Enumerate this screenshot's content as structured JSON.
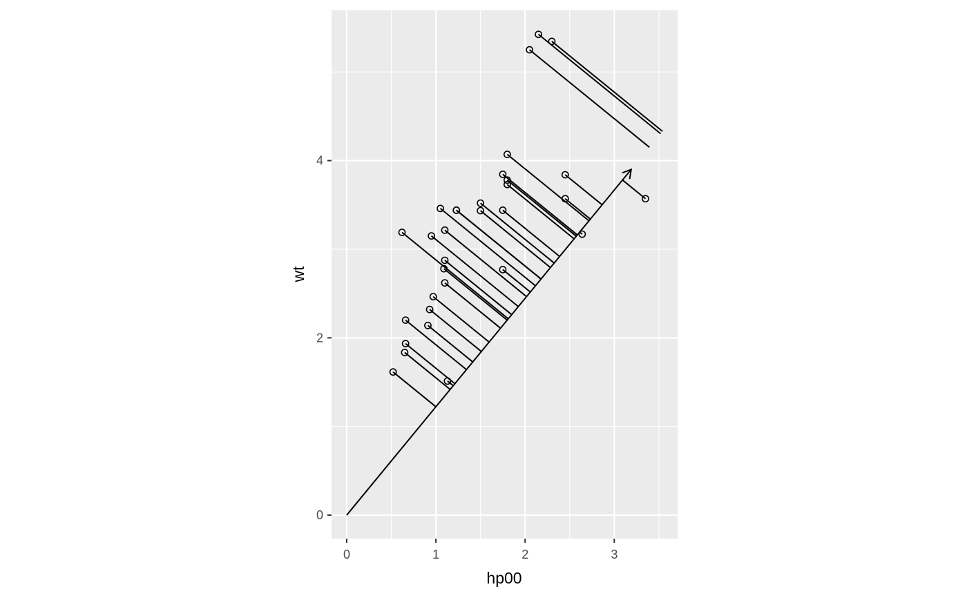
{
  "chart_data": {
    "type": "scatter",
    "title": "",
    "xlabel": "hp00",
    "ylabel": "wt",
    "xlim": [
      -0.17,
      3.71
    ],
    "ylim": [
      -0.265,
      5.695
    ],
    "x_ticks": [
      0,
      1,
      2,
      3
    ],
    "y_ticks": [
      0,
      2,
      4
    ],
    "grid": true,
    "legend": "none",
    "panel_background": "#ebebeb",
    "grid_color": "#ffffff",
    "line_color": "#000000",
    "direction_arrow": {
      "from": [
        0,
        0
      ],
      "to": [
        3.19,
        3.9
      ]
    },
    "points": [
      {
        "x": 1.1,
        "y": 2.62
      },
      {
        "x": 1.1,
        "y": 2.875
      },
      {
        "x": 0.93,
        "y": 2.32
      },
      {
        "x": 1.1,
        "y": 3.215
      },
      {
        "x": 1.75,
        "y": 3.44
      },
      {
        "x": 1.05,
        "y": 3.46
      },
      {
        "x": 2.45,
        "y": 3.57
      },
      {
        "x": 0.62,
        "y": 3.19
      },
      {
        "x": 0.95,
        "y": 3.15
      },
      {
        "x": 1.23,
        "y": 3.44
      },
      {
        "x": 1.23,
        "y": 3.44
      },
      {
        "x": 1.8,
        "y": 4.07
      },
      {
        "x": 1.8,
        "y": 3.73
      },
      {
        "x": 1.8,
        "y": 3.78
      },
      {
        "x": 2.05,
        "y": 5.25
      },
      {
        "x": 2.15,
        "y": 5.424
      },
      {
        "x": 2.3,
        "y": 5.345
      },
      {
        "x": 0.66,
        "y": 2.2
      },
      {
        "x": 0.52,
        "y": 1.615
      },
      {
        "x": 0.65,
        "y": 1.835
      },
      {
        "x": 0.97,
        "y": 2.465
      },
      {
        "x": 1.5,
        "y": 3.52
      },
      {
        "x": 1.5,
        "y": 3.435
      },
      {
        "x": 2.45,
        "y": 3.84
      },
      {
        "x": 1.75,
        "y": 3.845
      },
      {
        "x": 0.66,
        "y": 1.935
      },
      {
        "x": 0.91,
        "y": 2.14
      },
      {
        "x": 1.13,
        "y": 1.513
      },
      {
        "x": 2.64,
        "y": 3.17
      },
      {
        "x": 1.75,
        "y": 2.77
      },
      {
        "x": 3.35,
        "y": 3.57
      },
      {
        "x": 1.09,
        "y": 2.78
      }
    ]
  }
}
